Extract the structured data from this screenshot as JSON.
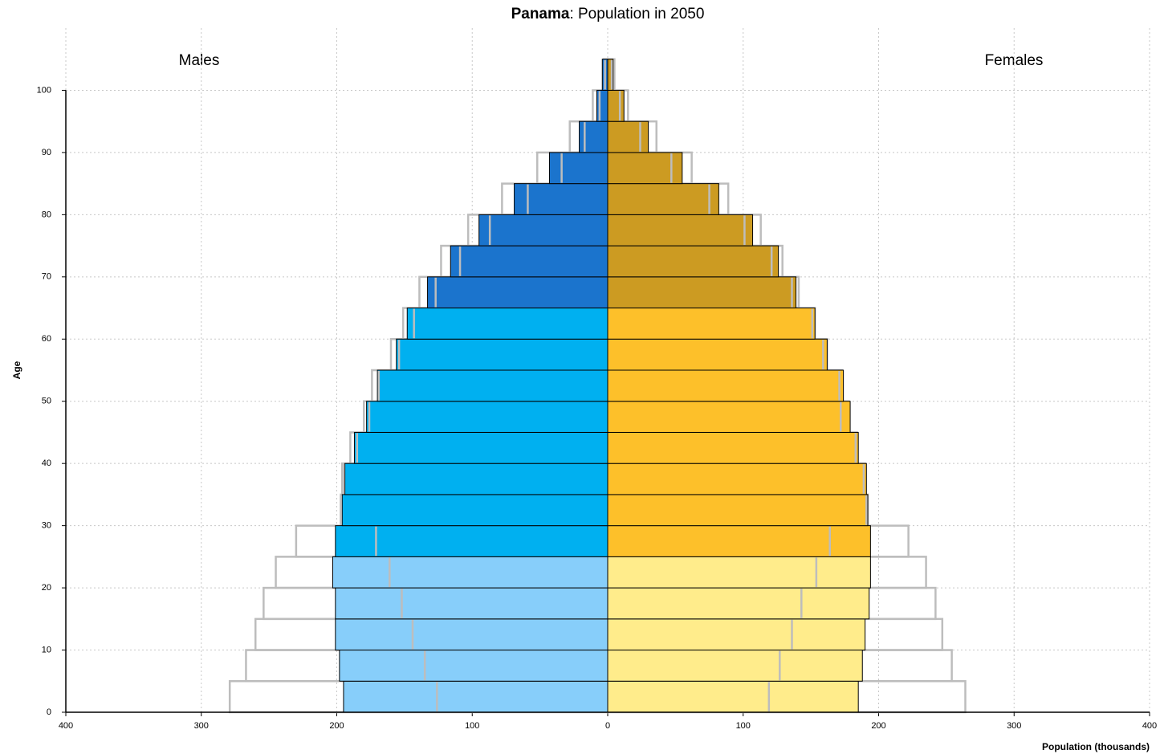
{
  "chart_data": {
    "type": "pyramid",
    "title_bold": "Panama",
    "title": ": Population in 2050",
    "left_label": "Males",
    "right_label": "Females",
    "y_label": "Age",
    "x_label": "Population (thousands)",
    "y": [
      0,
      5,
      10,
      15,
      20,
      25,
      30,
      35,
      40,
      45,
      50,
      55,
      60,
      65,
      70,
      75,
      80,
      85,
      90,
      95,
      100
    ],
    "males": [
      195,
      198,
      201,
      201,
      203,
      201,
      196,
      194,
      187,
      178,
      170,
      156,
      148,
      133,
      116,
      95,
      69,
      43,
      21,
      8,
      4
    ],
    "females": [
      185,
      188,
      190,
      193,
      194,
      194,
      192,
      191,
      185,
      179,
      174,
      162,
      153,
      139,
      126,
      107,
      82,
      55,
      30,
      12,
      4
    ],
    "outline_males": [
      279,
      267,
      260,
      254,
      245,
      230,
      197,
      196,
      190,
      180,
      174,
      160,
      151,
      139,
      123,
      103,
      78,
      52,
      28,
      11,
      3
    ],
    "outline_females": [
      264,
      254,
      247,
      242,
      235,
      222,
      192,
      190,
      184,
      178,
      173,
      162,
      153,
      141,
      129,
      113,
      89,
      62,
      36,
      15,
      5
    ],
    "marker_males": [
      126,
      135,
      144,
      152,
      161,
      171,
      197,
      195,
      185,
      176,
      169,
      154,
      143,
      127,
      109,
      87,
      59,
      34,
      17,
      6,
      2
    ],
    "marker_females": [
      119,
      127,
      136,
      143,
      154,
      164,
      191,
      189,
      183,
      172,
      171,
      159,
      151,
      136,
      121,
      101,
      75,
      47,
      24,
      9,
      3
    ],
    "color_bands": [
      {
        "from": 0,
        "male": "#87cefa",
        "female": "#ffec8b"
      },
      {
        "from": 25,
        "male": "#00b0f0",
        "female": "#fdc02a"
      },
      {
        "from": 65,
        "male": "#1b74cd",
        "female": "#cc9b22"
      }
    ],
    "outline_color": "#bdbdbd",
    "xlim": [
      -400,
      400
    ],
    "xticks": [
      {
        "value": -400,
        "label": "400"
      },
      {
        "value": -300,
        "label": "300"
      },
      {
        "value": -200,
        "label": "200"
      },
      {
        "value": -100,
        "label": "100"
      },
      0,
      100,
      200,
      300,
      400
    ],
    "ylim": [
      0,
      110
    ],
    "yticks": [
      0,
      10,
      20,
      30,
      40,
      50,
      60,
      70,
      80,
      90,
      100
    ],
    "grid": true
  }
}
